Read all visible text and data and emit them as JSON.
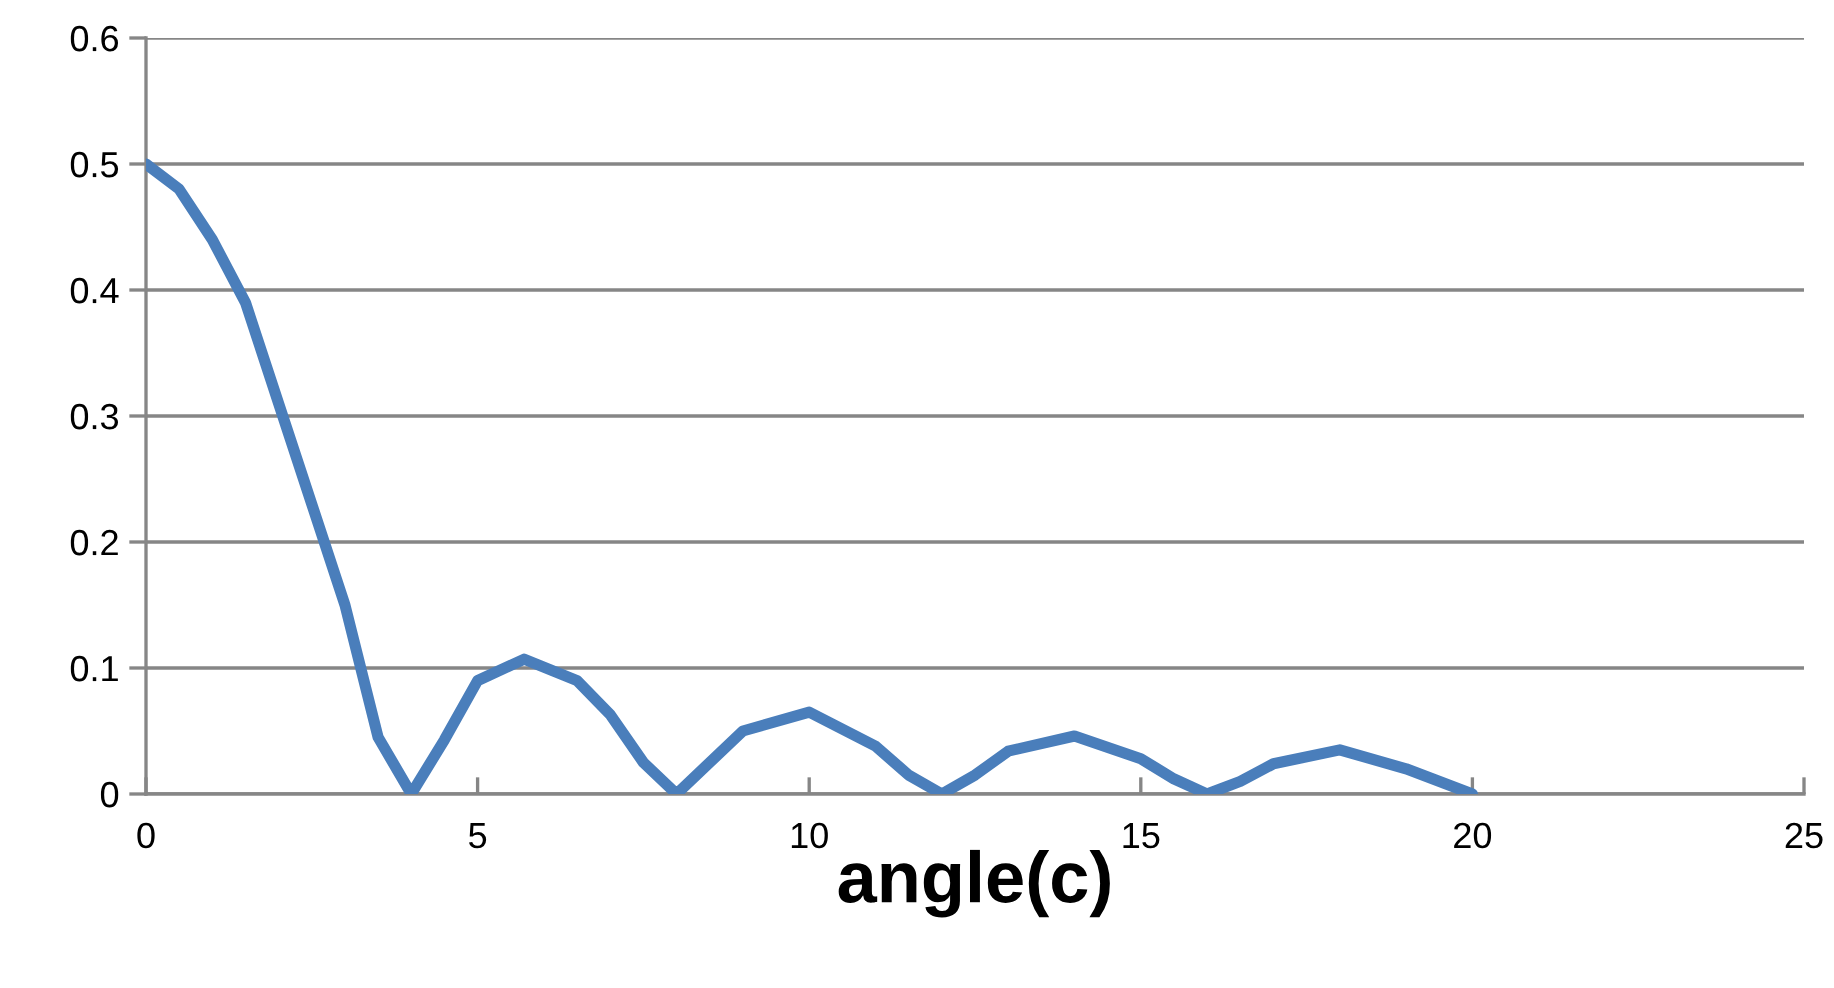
{
  "chart_data": {
    "type": "line",
    "xlabel": "angle(c)",
    "series": [
      {
        "color": "#4a7ebb",
        "x": [
          0,
          0.5,
          1,
          1.5,
          2,
          2.5,
          3,
          3.5,
          4,
          4.5,
          5,
          5.7,
          6.5,
          7,
          7.5,
          8,
          8.5,
          9,
          10,
          11,
          11.5,
          12,
          12.5,
          13,
          14,
          15,
          15.5,
          16,
          16.5,
          17,
          18,
          19,
          20
        ],
        "values": [
          0.5,
          0.48,
          0.44,
          0.39,
          0.31,
          0.23,
          0.15,
          0.045,
          0,
          0.043,
          0.09,
          0.107,
          0.09,
          0.063,
          0.025,
          0,
          0.025,
          0.05,
          0.065,
          0.038,
          0.015,
          0,
          0.015,
          0.034,
          0.046,
          0.028,
          0.012,
          0,
          0.01,
          0.024,
          0.035,
          0.02,
          0
        ]
      }
    ],
    "xlim": [
      0,
      25
    ],
    "xticks": [
      0,
      5,
      10,
      15,
      20,
      25
    ],
    "ylim": [
      0,
      0.6
    ],
    "yticks": [
      0,
      0.1,
      0.2,
      0.3,
      0.4,
      0.5,
      0.6
    ],
    "grid": "y",
    "legend": false,
    "marker": "none",
    "line_style": "solid"
  }
}
